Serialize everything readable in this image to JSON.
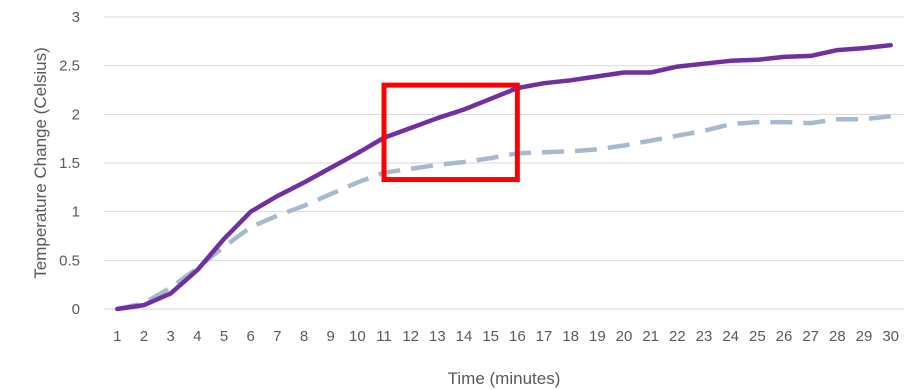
{
  "chart_data": {
    "type": "line",
    "title": "",
    "xlabel": "Time (minutes)",
    "ylabel": "Temperature Change (Celsius)",
    "x": [
      1,
      2,
      3,
      4,
      5,
      6,
      7,
      8,
      9,
      10,
      11,
      12,
      13,
      14,
      15,
      16,
      17,
      18,
      19,
      20,
      21,
      22,
      23,
      24,
      25,
      26,
      27,
      28,
      29,
      30
    ],
    "ylim": [
      0,
      3
    ],
    "yticks": [
      "0",
      "0.5",
      "1",
      "1.5",
      "2",
      "2.5",
      "3"
    ],
    "grid": true,
    "legend": "none",
    "series": [
      {
        "values": [
          0,
          0.04,
          0.16,
          0.4,
          0.72,
          1.0,
          1.16,
          1.3,
          1.45,
          1.6,
          1.76,
          1.86,
          1.96,
          2.05,
          2.16,
          2.27,
          2.32,
          2.35,
          2.39,
          2.43,
          2.43,
          2.49,
          2.52,
          2.55,
          2.56,
          2.59,
          2.6,
          2.66,
          2.68,
          2.71
        ],
        "color": "#7030a0",
        "style": "solid"
      },
      {
        "values": [
          0,
          0.06,
          0.22,
          0.42,
          0.64,
          0.84,
          0.96,
          1.06,
          1.18,
          1.3,
          1.4,
          1.44,
          1.48,
          1.51,
          1.55,
          1.6,
          1.61,
          1.62,
          1.64,
          1.68,
          1.73,
          1.78,
          1.83,
          1.9,
          1.92,
          1.92,
          1.91,
          1.95,
          1.95,
          1.98
        ],
        "color": "#a6b9cf",
        "style": "dashed"
      }
    ],
    "annotations": [
      {
        "type": "rectangle",
        "x_range": [
          11,
          16
        ],
        "y_range": [
          1.33,
          2.3
        ],
        "color": "#ff0000"
      }
    ]
  }
}
